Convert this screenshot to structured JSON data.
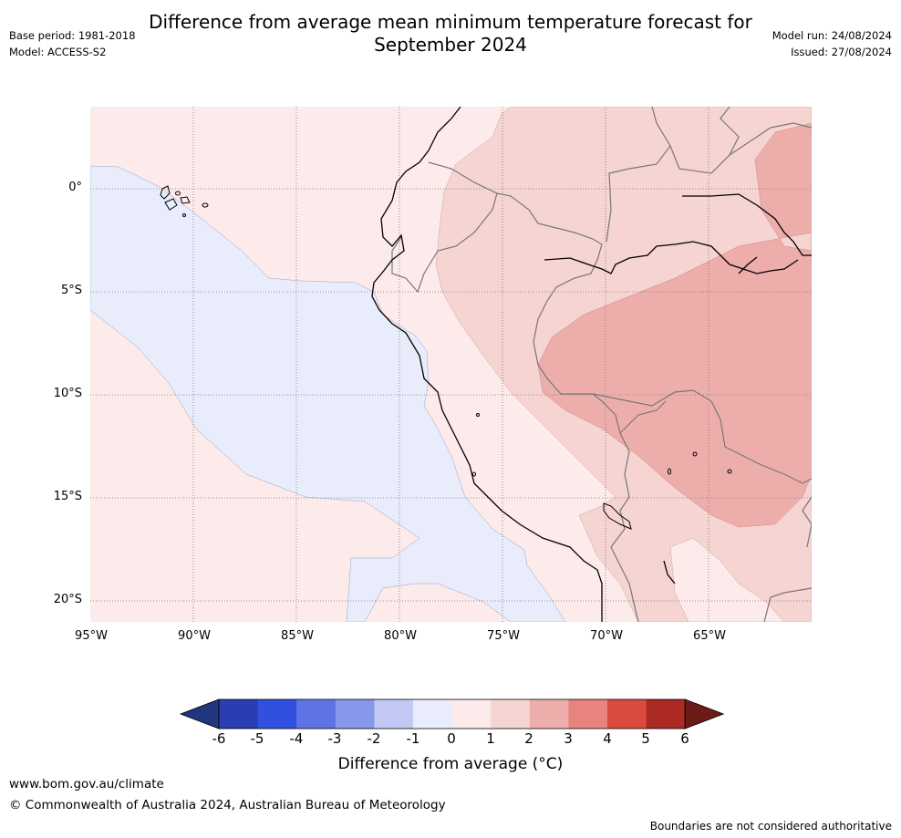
{
  "title_line1": "Difference from average mean minimum temperature forecast for",
  "title_line2": "September 2024",
  "base_period": "Base period: 1981-2018",
  "model": "Model: ACCESS-S2",
  "model_run": "Model run: 24/08/2024",
  "issued": "Issued: 27/08/2024",
  "map": {
    "lat_labels": [
      "0°",
      "5°S",
      "10°S",
      "15°S",
      "20°S"
    ],
    "lon_labels": [
      "95°W",
      "90°W",
      "85°W",
      "80°W",
      "75°W",
      "70°W",
      "65°W"
    ]
  },
  "colorbar": {
    "labels": [
      "-6",
      "-5",
      "-4",
      "-3",
      "-2",
      "-1",
      "0",
      "1",
      "2",
      "3",
      "4",
      "5",
      "6"
    ],
    "colors": [
      "#22367f",
      "#2a3eb1",
      "#3150df",
      "#5e74e2",
      "#8797ea",
      "#c2c9f4",
      "#e9ecfb",
      "#fcebea",
      "#f6d4d2",
      "#edaeab",
      "#e6847d",
      "#da4a3e",
      "#ab2a24",
      "#6b1b18"
    ],
    "title": "Difference from average (°C)"
  },
  "footer_url": "www.bom.gov.au/climate",
  "copyright": "© Commonwealth of Australia 2024, Australian Bureau of Meteorology",
  "disclaimer": "Boundaries are not considered authoritative"
}
